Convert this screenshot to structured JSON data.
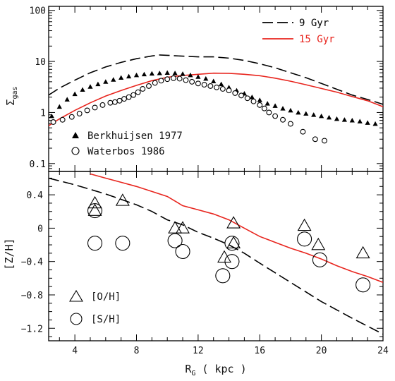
{
  "chart_data": [
    {
      "type": "line",
      "panel": "top",
      "ylabel": "Σgas",
      "xlabel": "",
      "xlim": [
        2.3,
        24
      ],
      "ylim": [
        0.07,
        120
      ],
      "yscale": "log",
      "yticks": [
        0.1,
        1,
        10,
        100
      ],
      "ytick_labels": [
        "0.1",
        "1",
        "10",
        "100"
      ],
      "xticks": [
        4,
        8,
        12,
        16,
        20,
        24
      ],
      "series": [
        {
          "name": "9 Gyr",
          "style": "dashed",
          "color": "#000000",
          "x": [
            2.3,
            3,
            4,
            5,
            6,
            7,
            8,
            9,
            9.5,
            10,
            11,
            12,
            13,
            14,
            15,
            16,
            17,
            18,
            19,
            20,
            21,
            22,
            23,
            24
          ],
          "y": [
            2.2,
            3.0,
            4.3,
            6.0,
            7.8,
            9.6,
            11.3,
            12.8,
            13.4,
            13.2,
            12.7,
            12.3,
            12.3,
            11.6,
            10.5,
            9.0,
            7.5,
            6.0,
            4.8,
            3.7,
            2.85,
            2.2,
            1.8,
            1.45
          ]
        },
        {
          "name": "15 Gyr",
          "style": "solid",
          "color": "#e8251e",
          "x": [
            2.3,
            3,
            4,
            5,
            6,
            7,
            8,
            9,
            10,
            11,
            12,
            13,
            14,
            15,
            16,
            17,
            18,
            19,
            20,
            21,
            22,
            23,
            24
          ],
          "y": [
            0.55,
            0.75,
            1.1,
            1.55,
            2.1,
            2.7,
            3.4,
            4.2,
            4.9,
            5.3,
            5.6,
            5.9,
            5.85,
            5.6,
            5.25,
            4.7,
            4.1,
            3.5,
            2.95,
            2.5,
            2.05,
            1.7,
            1.3
          ]
        },
        {
          "name": "Berkhuijsen 1977",
          "style": "marker-filled-triangle",
          "color": "#000000",
          "x": [
            2.5,
            3.0,
            3.5,
            4.0,
            4.5,
            5.0,
            5.5,
            6.0,
            6.5,
            7.0,
            7.5,
            8.0,
            8.5,
            9.0,
            9.5,
            10.0,
            10.5,
            11.0,
            11.5,
            12.0,
            12.5,
            13.0,
            13.5,
            14.0,
            14.5,
            15.0,
            15.5,
            16.0,
            16.5,
            17.0,
            17.5,
            18.0,
            18.5,
            19.0,
            19.5,
            20.0,
            20.5,
            21.0,
            21.5,
            22.0,
            22.5,
            23.0,
            23.5
          ],
          "y": [
            0.85,
            1.3,
            1.8,
            2.3,
            2.8,
            3.2,
            3.6,
            4.0,
            4.4,
            4.8,
            5.1,
            5.4,
            5.6,
            5.8,
            5.9,
            6.0,
            5.9,
            5.7,
            5.4,
            5.0,
            4.6,
            4.1,
            3.6,
            3.1,
            2.7,
            2.35,
            2.0,
            1.75,
            1.5,
            1.35,
            1.2,
            1.1,
            1.0,
            0.95,
            0.9,
            0.85,
            0.8,
            0.75,
            0.72,
            0.7,
            0.67,
            0.63,
            0.6
          ]
        },
        {
          "name": "Waterbos 1986",
          "style": "marker-open-circle",
          "color": "#000000",
          "x": [
            2.6,
            3.2,
            3.8,
            4.3,
            4.8,
            5.3,
            5.8,
            6.3,
            6.6,
            6.9,
            7.2,
            7.5,
            7.8,
            8.1,
            8.4,
            8.8,
            9.2,
            9.6,
            10.0,
            10.4,
            10.8,
            11.2,
            11.6,
            12.0,
            12.4,
            12.8,
            13.2,
            13.6,
            14.0,
            14.4,
            14.8,
            15.2,
            15.6,
            16.0,
            16.3,
            16.6,
            17.0,
            17.5,
            18.0,
            18.8,
            19.6,
            20.2
          ],
          "y": [
            0.65,
            0.72,
            0.82,
            0.95,
            1.1,
            1.25,
            1.4,
            1.55,
            1.6,
            1.7,
            1.85,
            2.0,
            2.2,
            2.5,
            2.9,
            3.3,
            3.8,
            4.2,
            4.5,
            4.7,
            4.6,
            4.3,
            4.0,
            3.7,
            3.5,
            3.3,
            3.1,
            2.9,
            2.7,
            2.4,
            2.15,
            1.9,
            1.65,
            1.4,
            1.2,
            1.0,
            0.85,
            0.72,
            0.6,
            0.42,
            0.3,
            0.28
          ]
        }
      ],
      "legend": [
        {
          "label": "9 Gyr",
          "position": "top-right"
        },
        {
          "label": "15 Gyr",
          "position": "top-right"
        },
        {
          "label": "Berkhuijsen 1977",
          "position": "bottom-left"
        },
        {
          "label": "Waterbos 1986",
          "position": "bottom-left"
        }
      ]
    },
    {
      "type": "line",
      "panel": "bottom",
      "ylabel": "[Z/H]",
      "xlabel": "RG ( kpc )",
      "xlim": [
        2.3,
        24
      ],
      "ylim": [
        -1.35,
        0.68
      ],
      "yticks": [
        0.4,
        0,
        -0.4,
        -0.8,
        -1.2
      ],
      "ytick_labels": [
        "0.4",
        "0",
        "−0.4",
        "−0.8",
        "−1.2"
      ],
      "xticks": [
        4,
        8,
        12,
        16,
        20,
        24
      ],
      "xtick_labels": [
        "4",
        "8",
        "12",
        "16",
        "20",
        "24"
      ],
      "series": [
        {
          "name": "9 Gyr",
          "style": "dashed",
          "color": "#000000",
          "x": [
            2.3,
            4,
            6,
            8,
            9,
            10,
            11,
            12,
            13,
            14,
            15,
            16,
            18,
            20,
            22,
            24
          ],
          "y": [
            0.6,
            0.52,
            0.41,
            0.28,
            0.2,
            0.1,
            0.04,
            -0.05,
            -0.12,
            -0.2,
            -0.3,
            -0.42,
            -0.65,
            -0.88,
            -1.08,
            -1.27
          ]
        },
        {
          "name": "15 Gyr",
          "style": "solid",
          "color": "#e8251e",
          "x": [
            5,
            6,
            7,
            8,
            9,
            10,
            11,
            12,
            13,
            14,
            15,
            16,
            17,
            18,
            19,
            20,
            21,
            22,
            23,
            24
          ],
          "y": [
            0.65,
            0.6,
            0.55,
            0.5,
            0.44,
            0.38,
            0.27,
            0.22,
            0.17,
            0.1,
            0.0,
            -0.1,
            -0.17,
            -0.24,
            -0.3,
            -0.37,
            -0.45,
            -0.52,
            -0.58,
            -0.65
          ]
        },
        {
          "name": "[O/H]",
          "style": "marker-open-triangle",
          "color": "#000000",
          "x": [
            5.3,
            5.3,
            7.1,
            10.5,
            11.0,
            13.7,
            14.3,
            14.3,
            18.9,
            19.8,
            22.7
          ],
          "y": [
            0.3,
            0.21,
            0.33,
            0.0,
            0.0,
            -0.35,
            0.06,
            -0.18,
            0.03,
            -0.2,
            -0.3
          ]
        },
        {
          "name": "[S/H]",
          "style": "marker-open-circle",
          "color": "#000000",
          "x": [
            5.3,
            5.3,
            7.1,
            10.5,
            11.0,
            13.6,
            14.2,
            14.2,
            18.9,
            19.9,
            22.7
          ],
          "y": [
            0.21,
            -0.18,
            -0.18,
            -0.15,
            -0.28,
            -0.57,
            -0.18,
            -0.4,
            -0.13,
            -0.38,
            -0.68
          ]
        }
      ],
      "legend": [
        {
          "label": "[O/H]",
          "position": "bottom-left"
        },
        {
          "label": "[S/H]",
          "position": "bottom-left"
        }
      ]
    }
  ]
}
